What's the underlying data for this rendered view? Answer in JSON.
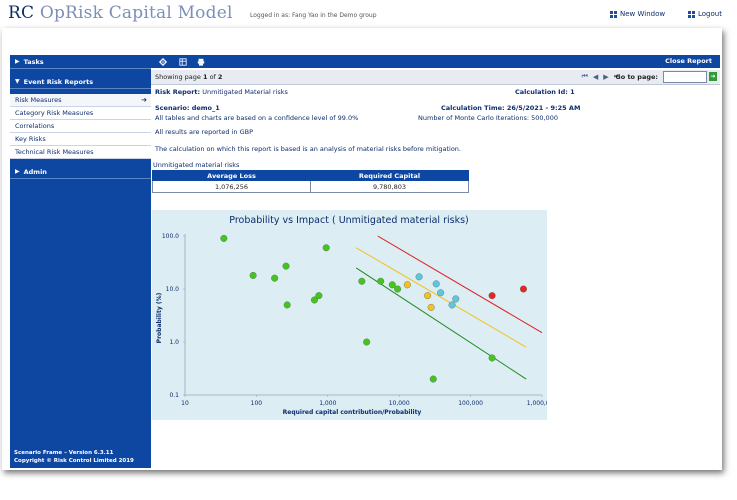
{
  "app": {
    "logo_rc": "RC",
    "logo_rest": " OpRisk Capital Model",
    "logged_in": "Logged in as: Fang Yao in the Demo group",
    "new_window": "New Window",
    "logout": "Logout"
  },
  "sidebar": {
    "tasks": "Tasks",
    "event_risk_reports": "Event Risk Reports",
    "items": [
      {
        "label": "Risk Measures"
      },
      {
        "label": "Category Risk Measures"
      },
      {
        "label": "Correlations"
      },
      {
        "label": "Key Risks"
      },
      {
        "label": "Technical Risk Measures"
      }
    ],
    "admin": "Admin",
    "footer_line1": "Scenario Frame – Version 6.3.11",
    "footer_line2": "Copyright © Risk Control Limited 2019"
  },
  "toolbar": {
    "close_report": "Close Report",
    "icons": [
      "gear-icon",
      "table-icon",
      "print-icon"
    ]
  },
  "pager": {
    "showing": "Showing page",
    "page": "1",
    "of": "of",
    "total": "2",
    "go_to_page": "Go to page:",
    "input_value": ""
  },
  "report": {
    "risk_report_label": "Risk Report:",
    "risk_report_value": "Unmitigated  Material  risks",
    "calc_id": "Calculation Id: 1",
    "scenario": "Scenario: demo_1",
    "calc_time": "Calculation Time: 26/5/2021 - 9:25 AM",
    "confidence": "All tables and charts are based on a confidence level of 99.0%",
    "iterations": "Number of Monte Carlo Iterations: 500,000",
    "gbp": "All results are reported in GBP",
    "calc_note": "The calculation on which this report is based is an analysis of material risks before mitigation.",
    "table_caption": "Unmitigated material risks",
    "table": {
      "headers": [
        "Average Loss",
        "Required Capital"
      ],
      "row": [
        "1,076,256",
        "9,780,803"
      ]
    }
  },
  "chart_data": {
    "type": "scatter",
    "title": "Probability vs Impact ( Unmitigated material risks)",
    "xlabel": "Required capital contribution/Probability",
    "ylabel": "Probability (%)",
    "x_scale": "log",
    "y_scale": "log",
    "xlim": [
      10,
      1000000
    ],
    "ylim": [
      0.1,
      100
    ],
    "x_ticks": [
      "10",
      "100",
      "1,000",
      "10,000",
      "100,000",
      "1,000,000"
    ],
    "y_ticks": [
      "100.0",
      "10.0",
      "1.0",
      "0.1"
    ],
    "grid": false,
    "series": [
      {
        "color": "#44c51d",
        "points": [
          [
            35,
            90
          ],
          [
            90,
            18
          ],
          [
            180,
            16
          ],
          [
            260,
            27
          ],
          [
            270,
            5
          ],
          [
            650,
            6.2
          ],
          [
            750,
            7.5
          ],
          [
            950,
            60
          ],
          [
            3000,
            14
          ],
          [
            3500,
            1
          ],
          [
            5500,
            14
          ],
          [
            8000,
            12
          ],
          [
            9500,
            10
          ],
          [
            30000,
            0.2
          ],
          [
            200000,
            0.5
          ]
        ]
      },
      {
        "color": "#f5c11a",
        "points": [
          [
            13000,
            12
          ],
          [
            25000,
            7.5
          ],
          [
            28000,
            4.5
          ]
        ]
      },
      {
        "color": "#5fc7dd",
        "points": [
          [
            19000,
            17
          ],
          [
            33000,
            12.5
          ],
          [
            38000,
            8.5
          ],
          [
            55000,
            5
          ],
          [
            62000,
            6.5
          ]
        ]
      },
      {
        "color": "#e82323",
        "points": [
          [
            200000,
            7.5
          ],
          [
            550000,
            10
          ]
        ]
      }
    ],
    "lines": [
      {
        "color": "#dd1f1f",
        "from": [
          5000,
          100
        ],
        "to": [
          1000000,
          1.5
        ]
      },
      {
        "color": "#f2c21d",
        "from": [
          2500,
          60
        ],
        "to": [
          600000,
          0.8
        ]
      },
      {
        "color": "#1f8a1f",
        "from": [
          2500,
          25
        ],
        "to": [
          600000,
          0.2
        ]
      }
    ]
  }
}
